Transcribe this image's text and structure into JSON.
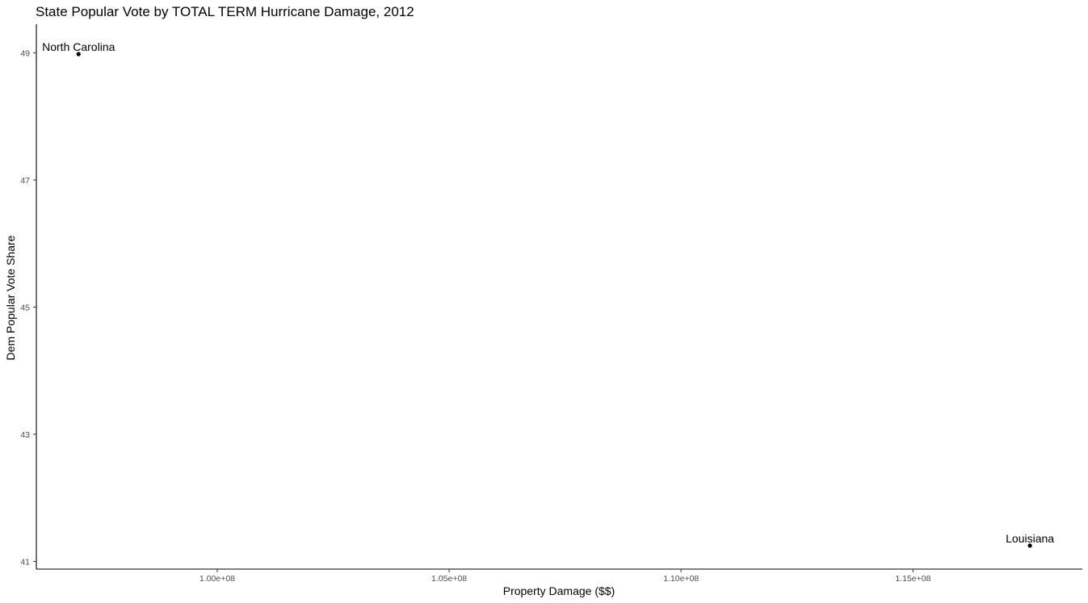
{
  "chart_data": {
    "type": "scatter",
    "title": "State Popular Vote by TOTAL TERM Hurricane Damage, 2012",
    "xlabel": "Property Damage ($$)",
    "ylabel": "Dem Popular Vote Share",
    "xlim": [
      96100000,
      118650000
    ],
    "ylim": [
      40.88,
      49.45
    ],
    "x_ticks": [
      100000000,
      105000000,
      110000000,
      115000000
    ],
    "x_tick_labels": [
      "1.00e+08",
      "1.05e+08",
      "1.10e+08",
      "1.15e+08"
    ],
    "y_ticks": [
      41,
      43,
      45,
      47,
      49
    ],
    "y_tick_labels": [
      "41",
      "43",
      "45",
      "47",
      "49"
    ],
    "grid": false,
    "legend": "none",
    "points": [
      {
        "label": "North Carolina",
        "x": 97010000,
        "y": 48.98
      },
      {
        "label": "Louisiana",
        "x": 117520000,
        "y": 41.25
      }
    ]
  }
}
